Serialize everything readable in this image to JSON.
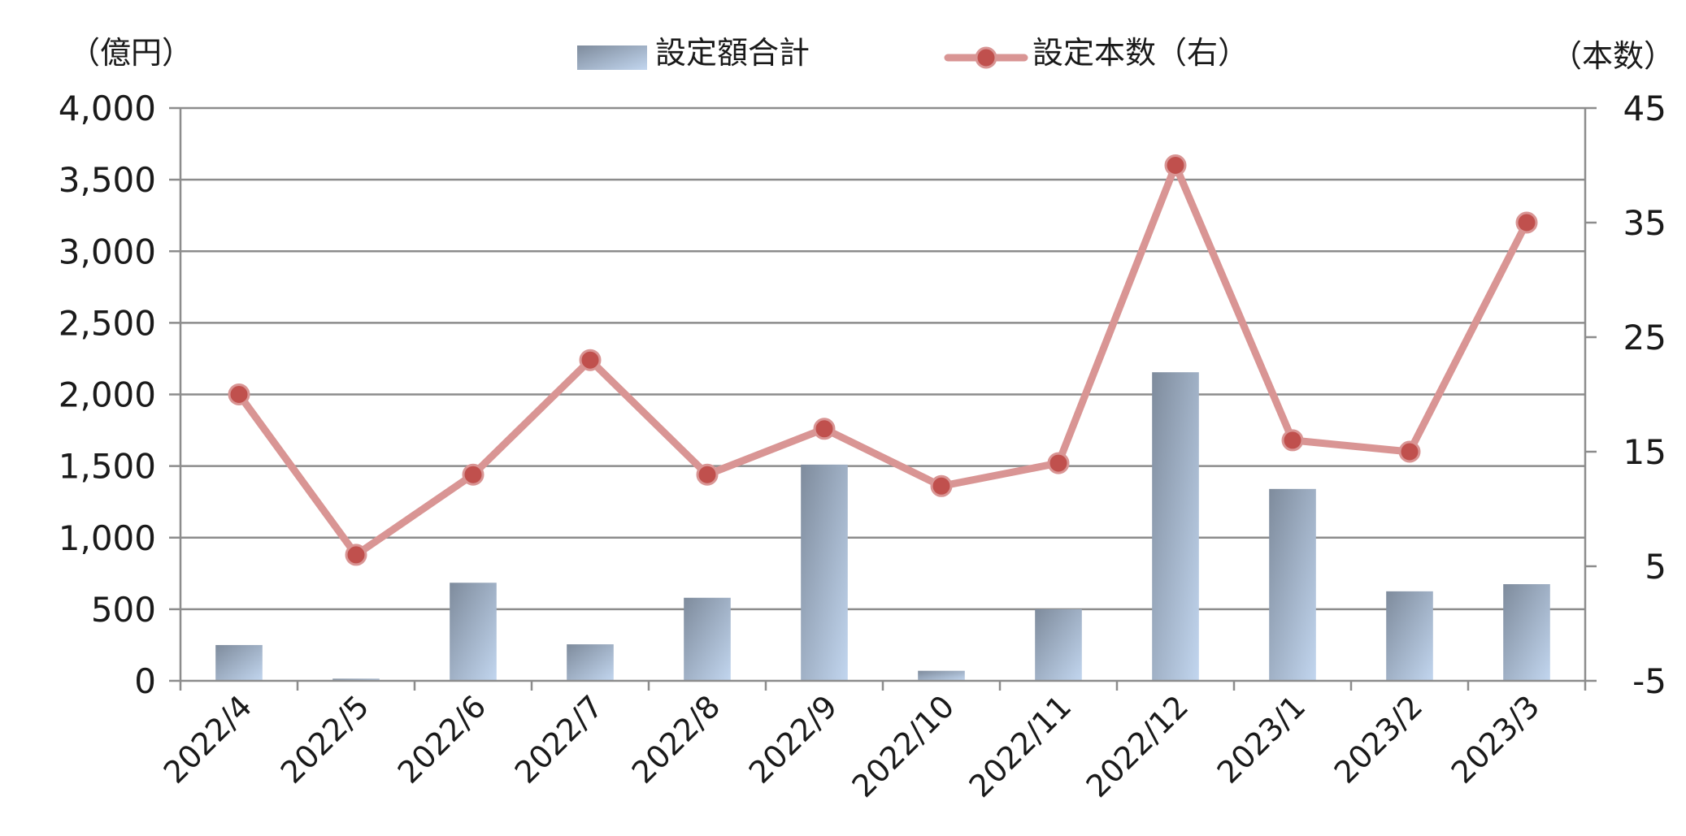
{
  "chart_data": {
    "type": "bar",
    "categories": [
      "2022/4",
      "2022/5",
      "2022/6",
      "2022/7",
      "2022/8",
      "2022/9",
      "2022/10",
      "2022/11",
      "2022/12",
      "2023/1",
      "2023/2",
      "2023/3"
    ],
    "series": [
      {
        "name": "設定額合計",
        "type": "bar",
        "axis": "left",
        "values": [
          250,
          15,
          685,
          255,
          580,
          1510,
          70,
          500,
          2155,
          1340,
          625,
          675
        ]
      },
      {
        "name": "設定本数（右）",
        "type": "line",
        "axis": "right",
        "values": [
          20,
          6,
          13,
          23,
          13,
          17,
          12,
          14,
          40,
          16,
          15,
          35
        ]
      }
    ],
    "left_axis": {
      "unit": "（億円）",
      "ylim": [
        0,
        4000
      ],
      "ticks": [
        0,
        500,
        1000,
        1500,
        2000,
        2500,
        3000,
        3500,
        4000
      ],
      "tick_labels": [
        "0",
        "500",
        "1,000",
        "1,500",
        "2,000",
        "2,500",
        "3,000",
        "3,500",
        "4,000"
      ]
    },
    "right_axis": {
      "unit": "（本数）",
      "ylim": [
        -5,
        45
      ],
      "ticks": [
        -5,
        5,
        15,
        25,
        35,
        45
      ],
      "tick_labels": [
        "-5",
        "5",
        "15",
        "25",
        "35",
        "45"
      ]
    },
    "grid": true,
    "legend_position": "top-center",
    "colors": {
      "bar_dark": "#7e8b9c",
      "bar_light": "#c2d6ef",
      "line": "#d99594",
      "marker": "#c0504d",
      "grid": "#8c8c8c"
    }
  }
}
